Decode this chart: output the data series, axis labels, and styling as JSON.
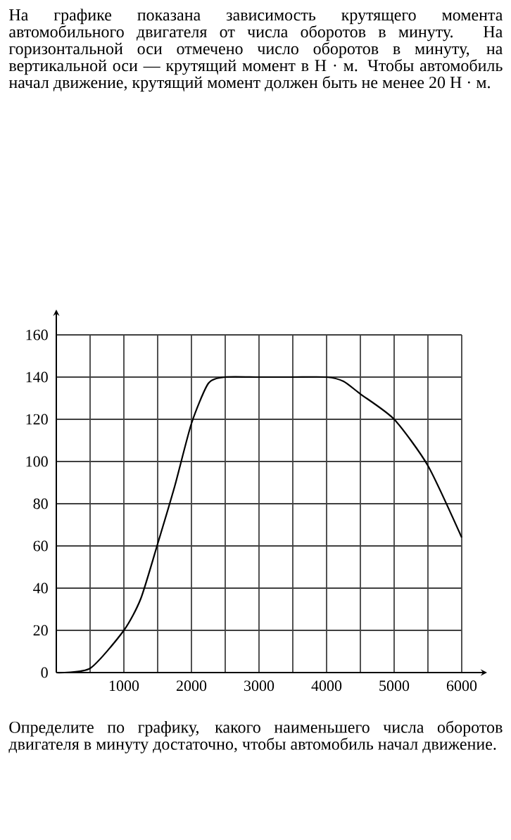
{
  "chart_data": {
    "type": "line",
    "title": "На графике показана зависимость крутящего момента автомобильного двигателя от числа оборотов в минуту. На горизонтальной оси отмечено число оборотов в минуту, на вертикальной оси — крутящий момент в Н · м. Чтобы автомобиль начал движение, крутящий момент должен быть не менее 20 Н · м.",
    "annotations": [
      "Определите по графику, какого наименьшего числа оборотов двигателя в минуту достаточно, чтобы автомобиль начал движение."
    ],
    "x": [
      0,
      500,
      1000,
      1250,
      1500,
      1750,
      2000,
      2250,
      2500,
      3000,
      3500,
      4000,
      4250,
      4500,
      5000,
      5500,
      6000
    ],
    "series": [
      {
        "color": "#000000",
        "values": [
          0,
          2,
          20,
          35,
          61,
          88,
          118,
          137,
          140,
          140,
          140,
          140,
          138,
          132,
          120,
          98,
          64
        ]
      }
    ],
    "xlim": [
      0,
      6000
    ],
    "ylim": [
      0,
      160
    ],
    "xticks": [
      {
        "value": 0,
        "label": null
      },
      {
        "value": 500,
        "label": null
      },
      1000,
      {
        "value": 1500,
        "label": null
      },
      2000,
      {
        "value": 2500,
        "label": null
      },
      3000,
      {
        "value": 3500,
        "label": null
      },
      4000,
      {
        "value": 4500,
        "label": null
      },
      5000,
      {
        "value": 5500,
        "label": null
      },
      6000
    ],
    "yticks": [
      0,
      20,
      40,
      60,
      80,
      100,
      120,
      140,
      160
    ],
    "grid": true,
    "marker": "none"
  }
}
